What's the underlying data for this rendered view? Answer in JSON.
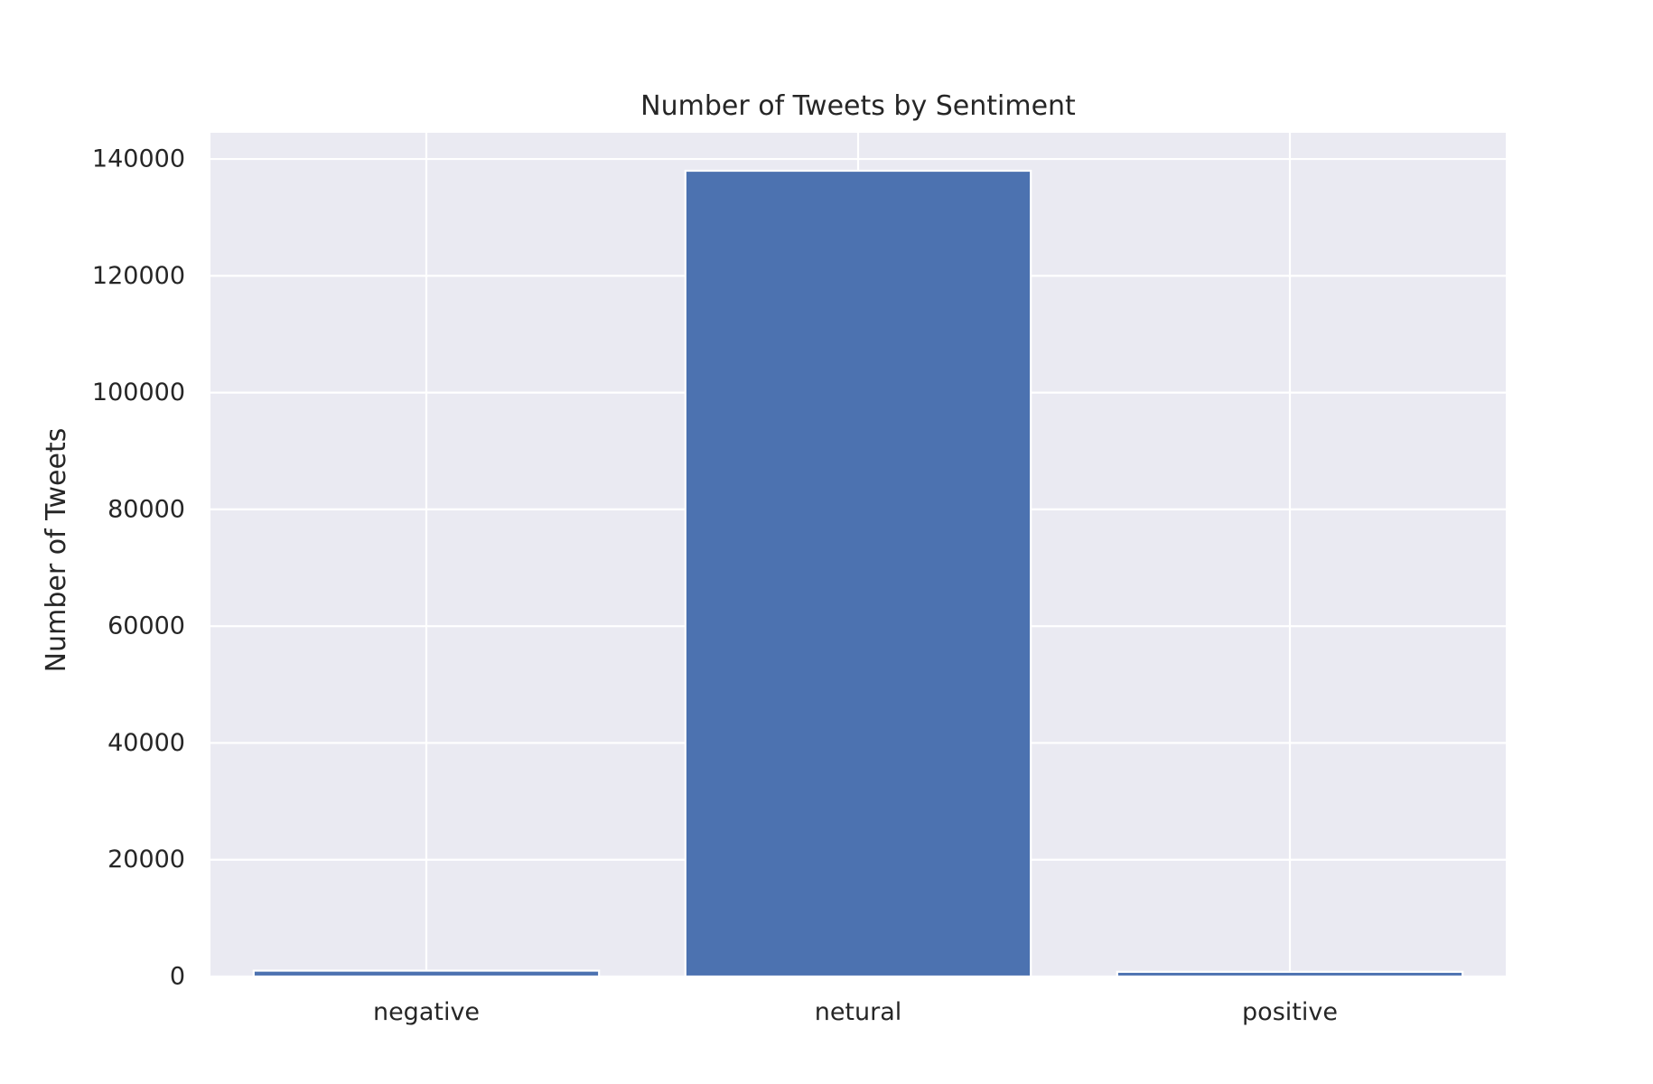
{
  "chart_data": {
    "type": "bar",
    "title": "Number of Tweets by Sentiment",
    "xlabel": "",
    "ylabel": "Number of Tweets",
    "categories": [
      "negative",
      "netural",
      "positive"
    ],
    "values": [
      1000,
      138000,
      800
    ],
    "ylim": [
      0,
      144500
    ],
    "yticks": [
      0,
      20000,
      40000,
      60000,
      80000,
      100000,
      120000,
      140000
    ],
    "grid": true,
    "legend": "none",
    "colors": {
      "bar": "#4c72b0",
      "plot_background": "#eaeaf2",
      "grid": "#ffffff",
      "text": "#262626"
    }
  }
}
